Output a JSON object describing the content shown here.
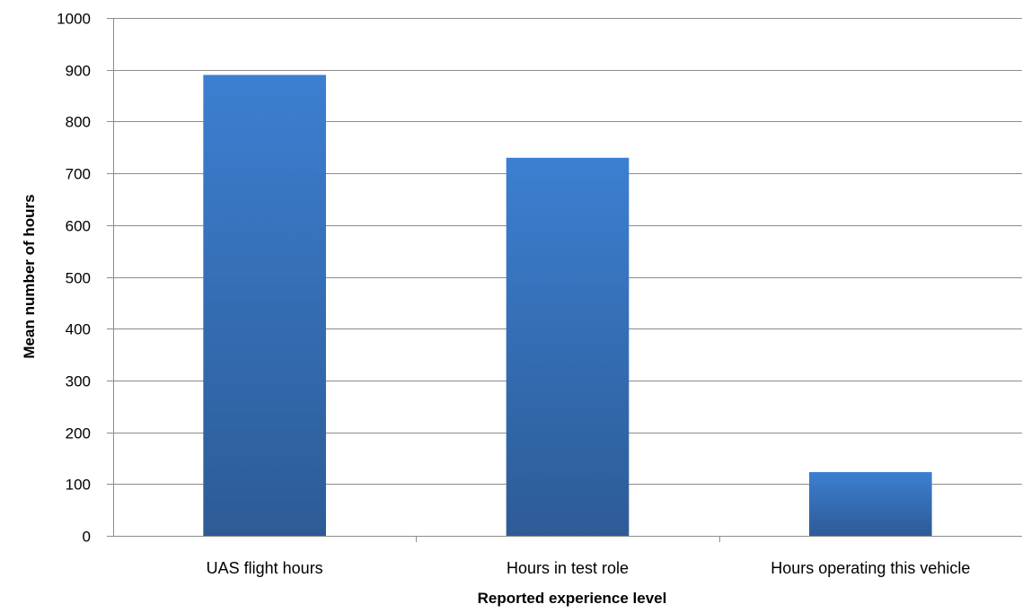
{
  "chart_data": {
    "type": "bar",
    "categories": [
      "UAS flight hours",
      "Hours in test role",
      "Hours operating this vehicle"
    ],
    "values": [
      890,
      730,
      123
    ],
    "title": "",
    "xlabel": "Reported experience level",
    "ylabel": "Mean number of hours",
    "ylim": [
      0,
      1000
    ],
    "yticks": [
      "0",
      "100",
      "200",
      "300",
      "400",
      "500",
      "600",
      "700",
      "800",
      "900",
      "1000"
    ],
    "grid": true,
    "legend": "none",
    "colors": {
      "bar_top": "#3c7fd1",
      "bar_bottom": "#2d5b96",
      "gridline": "#8c8c8c",
      "axis": "#8c8c8c"
    }
  }
}
